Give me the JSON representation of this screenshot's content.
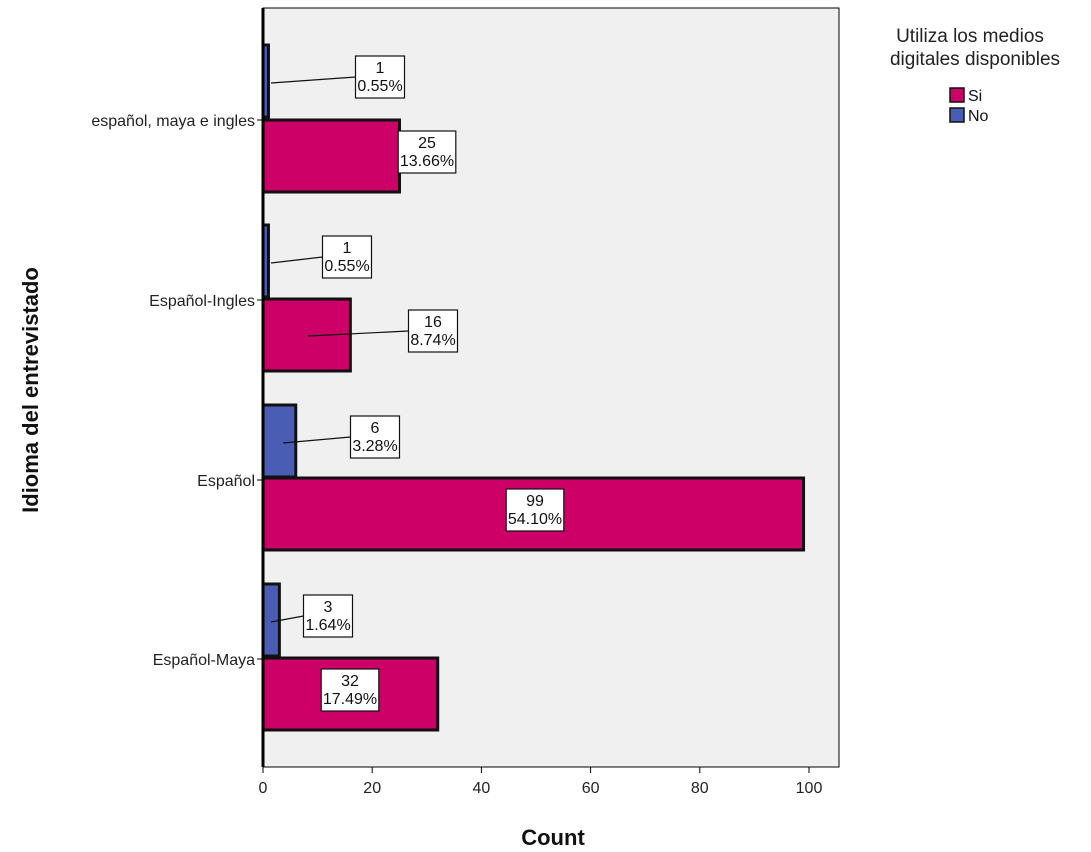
{
  "chart_data": {
    "type": "bar",
    "orientation": "horizontal",
    "categories": [
      "español, maya e ingles",
      "Español-Ingles",
      "Español",
      "Español-Maya"
    ],
    "series": [
      {
        "name": "Si",
        "color": "#CC0066",
        "values": [
          25,
          16,
          99,
          32
        ],
        "percents": [
          "13.66%",
          "8.74%",
          "54.10%",
          "17.49%"
        ]
      },
      {
        "name": "No",
        "color": "#4A5DB5",
        "values": [
          1,
          1,
          6,
          3
        ],
        "percents": [
          "0.55%",
          "0.55%",
          "3.28%",
          "1.64%"
        ]
      }
    ],
    "xlabel": "Count",
    "ylabel": "Idioma del entrevistado",
    "xlim": [
      0,
      105
    ],
    "xticks": [
      0,
      20,
      40,
      60,
      80,
      100
    ],
    "legend_title": "Utiliza los medios digitales disponibles",
    "legend_position": "top-right",
    "plot_background": "#F0F0F0",
    "grid": false
  }
}
